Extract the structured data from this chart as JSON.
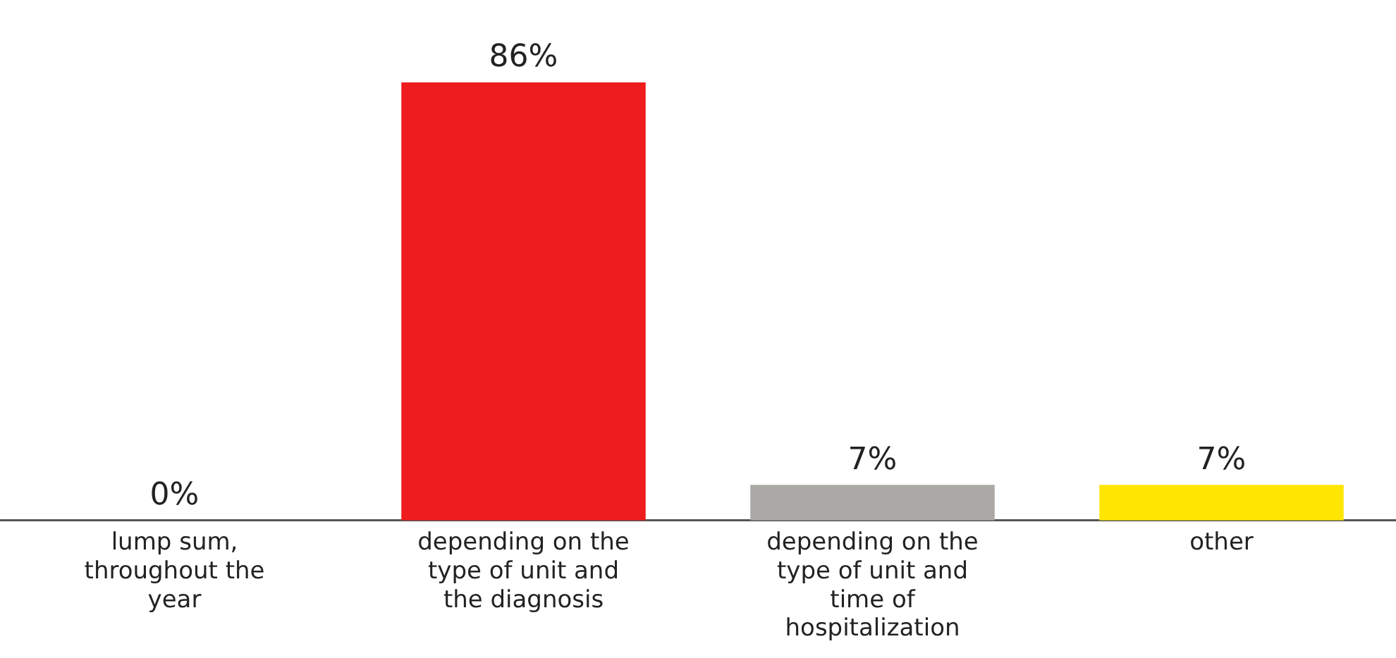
{
  "chart_data": {
    "type": "bar",
    "categories": [
      "lump sum, throughout the year",
      "depending on the type of unit and the diagnosis",
      "depending on the type of unit and time of hospitalization",
      "other"
    ],
    "values": [
      0,
      86,
      7,
      7
    ],
    "colors": [
      "#ee1c1c",
      "#ee1c1c",
      "#aba8a6",
      "#ffe600"
    ],
    "value_labels": [
      "0%",
      "86%",
      "7%",
      "7%"
    ],
    "grid": false,
    "legend": false
  }
}
